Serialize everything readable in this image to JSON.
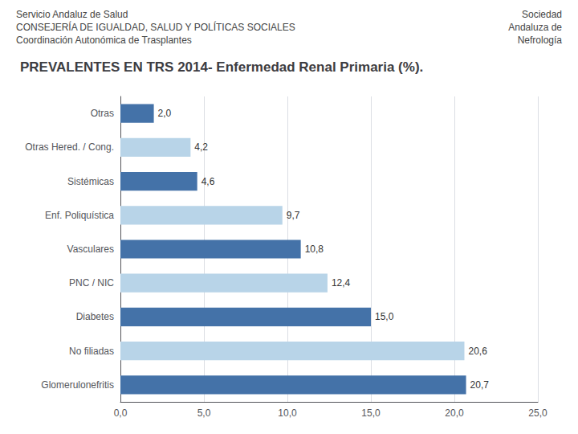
{
  "chart_data": {
    "type": "bar",
    "orientation": "horizontal",
    "title": "PREVALENTES EN TRS 2014- Enfermedad Renal Primaria (%).",
    "annotations": [
      "Servicio Andaluz de Salud",
      "CONSEJERÍA DE IGUALDAD, SALUD Y POLÍTICAS SOCIALES",
      "Coordinación Autonómica de Trasplantes",
      "Sociedad",
      "Andaluza de",
      "Nefrología"
    ],
    "categories": [
      "Glomerulonefritis",
      "No filiadas",
      "Diabetes",
      "PNC / NIC",
      "Vasculares",
      "Enf. Poliquística",
      "Sistémicas",
      "Otras Hered. / Cong.",
      "Otras"
    ],
    "values": [
      20.7,
      20.6,
      15.0,
      12.4,
      10.8,
      9.7,
      4.6,
      4.2,
      2.0
    ],
    "value_labels": [
      "20,7",
      "20,6",
      "15,0",
      "12,4",
      "10,8",
      "9,7",
      "4,6",
      "4,2",
      "2,0"
    ],
    "colors": [
      "#4472a8",
      "#b8d4e8",
      "#4472a8",
      "#b8d4e8",
      "#4472a8",
      "#b8d4e8",
      "#4472a8",
      "#b8d4e8",
      "#4472a8"
    ],
    "xlim": [
      0,
      25
    ],
    "xticks": [
      {
        "value": 0,
        "label": "0,0"
      },
      {
        "value": 5,
        "label": "5,0"
      },
      {
        "value": 10,
        "label": "10,0"
      },
      {
        "value": 15,
        "label": "15,0"
      },
      {
        "value": 20,
        "label": "20,0"
      },
      {
        "value": 25,
        "label": "25,0"
      }
    ],
    "grid": true,
    "data_labels": true
  }
}
